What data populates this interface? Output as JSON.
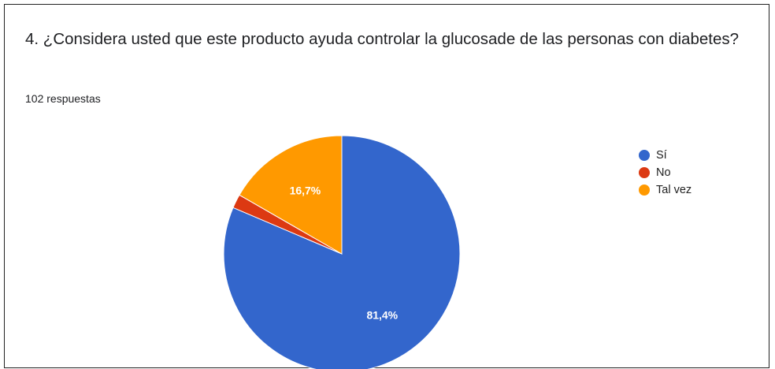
{
  "question": {
    "title": "4. ¿Considera usted que este producto ayuda controlar la glucosade de las personas con diabetes?",
    "responses": "102 respuestas"
  },
  "chart_data": {
    "type": "pie",
    "start_angle_deg": 90,
    "direction": "clockwise",
    "legend_position": "right",
    "slices": [
      {
        "label": "Sí",
        "value": 81.4,
        "data_label": "81,4%",
        "color": "#3366cc"
      },
      {
        "label": "No",
        "value": 1.9,
        "data_label": "",
        "color": "#dc3912"
      },
      {
        "label": "Tal vez",
        "value": 16.7,
        "data_label": "16,7%",
        "color": "#ff9900"
      }
    ]
  }
}
